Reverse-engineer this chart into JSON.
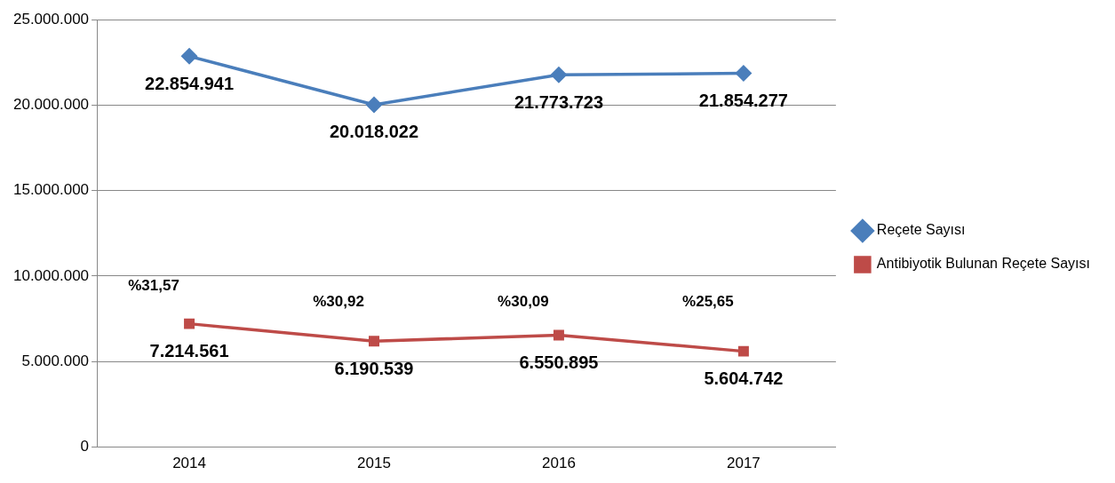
{
  "chart_data": {
    "type": "line",
    "categories": [
      "2014",
      "2015",
      "2016",
      "2017"
    ],
    "series": [
      {
        "name": "Reçete Sayısı",
        "color": "#4a7ebb",
        "marker": "diamond",
        "values": [
          22854941,
          20018022,
          21773723,
          21854277
        ],
        "value_labels": [
          "22.854.941",
          "20.018.022",
          "21.773.723",
          "21.854.277"
        ]
      },
      {
        "name": "Antibiyotik Bulunan Reçete Sayısı",
        "color": "#be4b48",
        "marker": "square",
        "values": [
          7214561,
          6190539,
          6550895,
          5604742
        ],
        "value_labels": [
          "7.214.561",
          "6.190.539",
          "6.550.895",
          "5.604.742"
        ]
      }
    ],
    "ylim": [
      0,
      25000000
    ],
    "yticks": [
      {
        "value": 0,
        "label": "0"
      },
      {
        "value": 5000000,
        "label": "5.000.000"
      },
      {
        "value": 10000000,
        "label": "10.000.000"
      },
      {
        "value": 15000000,
        "label": "15.000.000"
      },
      {
        "value": 20000000,
        "label": "20.000.000"
      },
      {
        "value": 25000000,
        "label": "25.000.000"
      }
    ],
    "grid": "y",
    "legend": "right",
    "line_style": "solid",
    "annotations": [
      "%31,57",
      "%30,92",
      "%30,09",
      "%25,65"
    ]
  }
}
